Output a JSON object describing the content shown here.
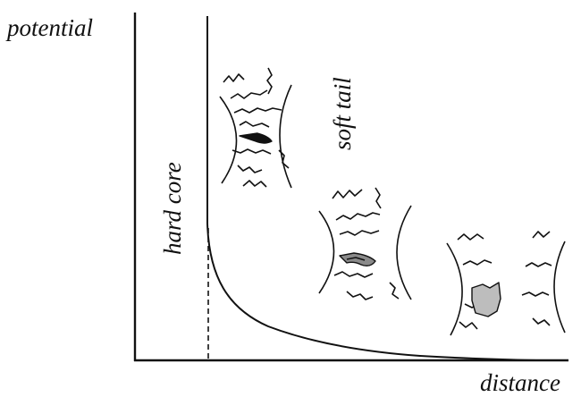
{
  "labels": {
    "y_axis": "potential",
    "x_axis": "distance",
    "hard_core": "hard core",
    "soft_tail": "soft tail"
  },
  "colors": {
    "ink": "#111111",
    "core_fill": "#bdbdbd"
  }
}
